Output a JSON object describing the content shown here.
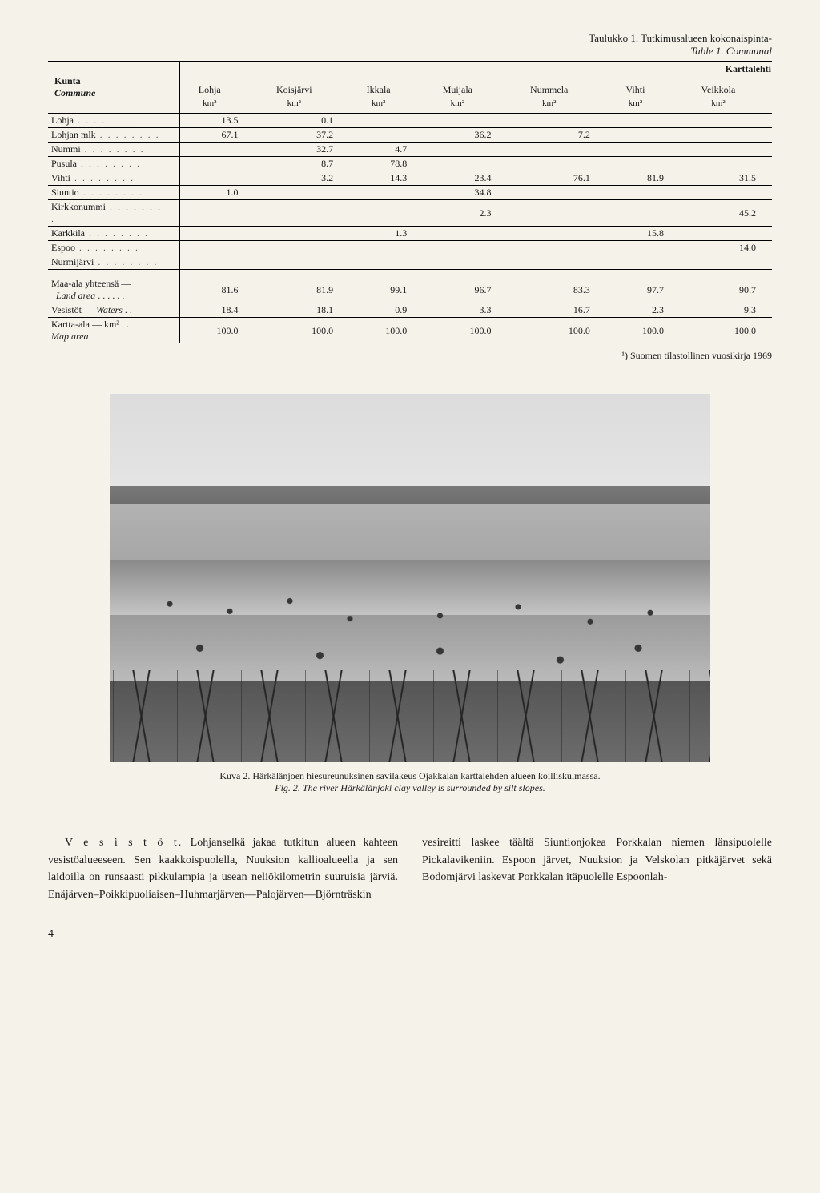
{
  "table": {
    "title_line1": "Taulukko 1. Tutkimusalueen kokonaispinta-",
    "title_line2": "Table 1. Communal",
    "karttalehti": "Karttalehti",
    "kunta_label": "Kunta",
    "commune_label": "Commune",
    "columns": [
      "Lohja",
      "Koisjärvi",
      "Ikkala",
      "Muijala",
      "Nummela",
      "Vihti",
      "Veikkola"
    ],
    "unit": "km²",
    "rows": [
      {
        "label": "Lohja",
        "v": [
          "13.5",
          "0.1",
          "",
          "",
          "",
          "",
          ""
        ]
      },
      {
        "label": "Lohjan mlk",
        "v": [
          "67.1",
          "37.2",
          "",
          "36.2",
          "7.2",
          "",
          ""
        ]
      },
      {
        "label": "Nummi",
        "v": [
          "",
          "32.7",
          "4.7",
          "",
          "",
          "",
          ""
        ]
      },
      {
        "label": "Pusula",
        "v": [
          "",
          "8.7",
          "78.8",
          "",
          "",
          "",
          ""
        ]
      },
      {
        "label": "Vihti",
        "v": [
          "",
          "3.2",
          "14.3",
          "23.4",
          "76.1",
          "81.9",
          "31.5"
        ]
      },
      {
        "label": "Siuntio",
        "v": [
          "1.0",
          "",
          "",
          "34.8",
          "",
          "",
          ""
        ]
      },
      {
        "label": "Kirkkonummi",
        "v": [
          "",
          "",
          "",
          "2.3",
          "",
          "",
          "45.2"
        ]
      },
      {
        "label": "Karkkila",
        "v": [
          "",
          "",
          "1.3",
          "",
          "",
          "15.8",
          ""
        ]
      },
      {
        "label": "Espoo",
        "v": [
          "",
          "",
          "",
          "",
          "",
          "",
          "14.0"
        ]
      },
      {
        "label": "Nurmijärvi",
        "v": [
          "",
          "",
          "",
          "",
          "",
          "",
          ""
        ]
      }
    ],
    "summary": [
      {
        "label1": "Maa-ala yhteensä —",
        "label2": "Land area",
        "italic2": true,
        "v": [
          "81.6",
          "81.9",
          "99.1",
          "96.7",
          "83.3",
          "97.7",
          "90.7"
        ]
      },
      {
        "label1": "Vesistöt — ",
        "label2": "Waters",
        "italic2": true,
        "suffix": " . .",
        "v": [
          "18.4",
          "18.1",
          "0.9",
          "3.3",
          "16.7",
          "2.3",
          "9.3"
        ]
      },
      {
        "label1": "Kartta-ala",
        "label2": "Map area",
        "italic2": true,
        "unit": " km² . .",
        "stack": true,
        "v": [
          "100.0",
          "100.0",
          "100.0",
          "100.0",
          "100.0",
          "100.0",
          "100.0"
        ]
      }
    ],
    "footnote": "¹) Suomen tilastollinen vuosikirja 1969"
  },
  "figure": {
    "caption_line1": "Kuva 2. Härkälänjoen hiesureunuksinen savilakeus Ojakkalan karttalehden alueen koilliskulmassa.",
    "caption_line2": "Fig. 2. The river Härkälänjoki clay valley is surrounded by silt slopes."
  },
  "body": {
    "runin": "V e s i s t ö t.",
    "para": " Lohjanselkä jakaa tutkitun alueen kahteen vesistöalueeseen. Sen kaakkoispuolella, Nuuksion kallioalueella ja sen laidoilla on runsaasti pikkulampia ja usean neliökilometrin suuruisia järviä. Enäjärven–Poikkipuoliaisen–Huhmarjärven—Palojärven—Björnträskin vesireitti laskee täältä Siuntionjokea Porkkalan niemen länsipuolelle Pickalavikeniin. Espoon järvet, Nuuksion ja Velskolan pitkäjärvet sekä Bodomjärvi laskevat Porkkalan itäpuolelle Espoonlah-"
  },
  "pagenum": "4"
}
